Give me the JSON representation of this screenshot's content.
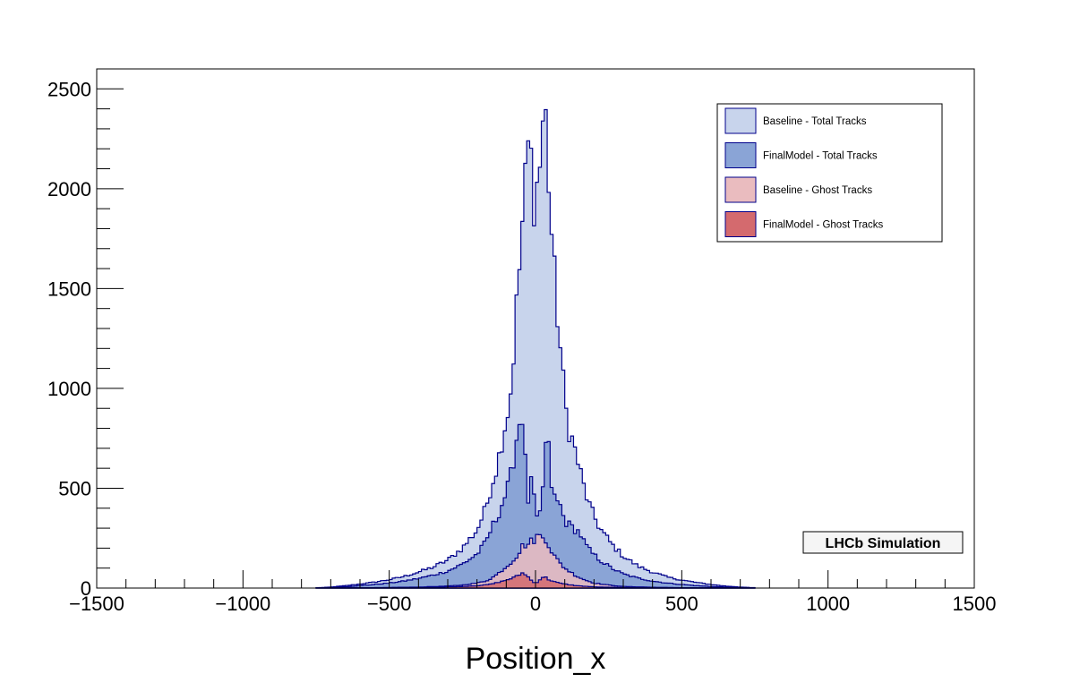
{
  "chart_data": {
    "type": "histogram",
    "xlabel": "Position_x",
    "ylabel": "",
    "xlim": [
      -1500,
      1500
    ],
    "ylim": [
      0,
      2600
    ],
    "x_ticks": [
      -1500,
      -1000,
      -500,
      0,
      500,
      1000,
      1500
    ],
    "x_tick_labels": [
      "−1500",
      "−1000",
      "−500",
      "0",
      "500",
      "1000",
      "1500"
    ],
    "y_ticks": [
      0,
      500,
      1000,
      1500,
      2000,
      2500
    ],
    "y_tick_labels": [
      "0",
      "500",
      "1000",
      "1500",
      "2000",
      "2500"
    ],
    "bin_range": [
      -750,
      750
    ],
    "bin_width": 10,
    "legend_position": "top-right",
    "annotation": "LHCb Simulation",
    "series": [
      {
        "name": "Baseline - Total Tracks",
        "fill": "#c8d4ec",
        "line": "#00008b",
        "points": [
          [
            -740,
            2
          ],
          [
            -700,
            5
          ],
          [
            -650,
            12
          ],
          [
            -600,
            20
          ],
          [
            -550,
            30
          ],
          [
            -500,
            42
          ],
          [
            -450,
            58
          ],
          [
            -400,
            80
          ],
          [
            -350,
            105
          ],
          [
            -300,
            140
          ],
          [
            -250,
            200
          ],
          [
            -200,
            290
          ],
          [
            -170,
            400
          ],
          [
            -150,
            520
          ],
          [
            -130,
            620
          ],
          [
            -110,
            780
          ],
          [
            -90,
            920
          ],
          [
            -80,
            1050
          ],
          [
            -70,
            1300
          ],
          [
            -60,
            1500
          ],
          [
            -50,
            1700
          ],
          [
            -40,
            1950
          ],
          [
            -30,
            2080
          ],
          [
            -20,
            2320
          ],
          [
            -10,
            1950
          ],
          [
            0,
            1980
          ],
          [
            10,
            2050
          ],
          [
            20,
            2200
          ],
          [
            30,
            2470
          ],
          [
            40,
            2200
          ],
          [
            50,
            1900
          ],
          [
            60,
            1650
          ],
          [
            70,
            1450
          ],
          [
            80,
            1300
          ],
          [
            90,
            1100
          ],
          [
            100,
            950
          ],
          [
            110,
            820
          ],
          [
            130,
            720
          ],
          [
            150,
            600
          ],
          [
            170,
            480
          ],
          [
            190,
            390
          ],
          [
            220,
            300
          ],
          [
            260,
            220
          ],
          [
            300,
            160
          ],
          [
            350,
            110
          ],
          [
            400,
            80
          ],
          [
            450,
            55
          ],
          [
            500,
            40
          ],
          [
            550,
            28
          ],
          [
            600,
            18
          ],
          [
            650,
            10
          ],
          [
            700,
            5
          ],
          [
            740,
            2
          ]
        ]
      },
      {
        "name": "FinalModel - Total Tracks",
        "fill": "#8aa4d6",
        "line": "#00008b",
        "points": [
          [
            -740,
            1
          ],
          [
            -700,
            3
          ],
          [
            -650,
            7
          ],
          [
            -600,
            12
          ],
          [
            -550,
            18
          ],
          [
            -500,
            25
          ],
          [
            -450,
            35
          ],
          [
            -400,
            48
          ],
          [
            -350,
            65
          ],
          [
            -300,
            85
          ],
          [
            -250,
            120
          ],
          [
            -200,
            170
          ],
          [
            -170,
            230
          ],
          [
            -150,
            300
          ],
          [
            -130,
            360
          ],
          [
            -110,
            440
          ],
          [
            -90,
            520
          ],
          [
            -80,
            600
          ],
          [
            -70,
            700
          ],
          [
            -60,
            800
          ],
          [
            -50,
            870
          ],
          [
            -40,
            860
          ],
          [
            -30,
            400
          ],
          [
            -20,
            480
          ],
          [
            -10,
            560
          ],
          [
            0,
            350
          ],
          [
            10,
            320
          ],
          [
            20,
            420
          ],
          [
            30,
            600
          ],
          [
            40,
            820
          ],
          [
            50,
            560
          ],
          [
            60,
            480
          ],
          [
            70,
            420
          ],
          [
            80,
            440
          ],
          [
            90,
            380
          ],
          [
            100,
            340
          ],
          [
            110,
            320
          ],
          [
            130,
            300
          ],
          [
            150,
            280
          ],
          [
            170,
            220
          ],
          [
            190,
            180
          ],
          [
            220,
            140
          ],
          [
            260,
            100
          ],
          [
            300,
            70
          ],
          [
            350,
            50
          ],
          [
            400,
            35
          ],
          [
            450,
            25
          ],
          [
            500,
            18
          ],
          [
            550,
            12
          ],
          [
            600,
            8
          ],
          [
            650,
            5
          ],
          [
            700,
            3
          ],
          [
            740,
            1
          ]
        ]
      },
      {
        "name": "Baseline - Ghost Tracks",
        "fill": "#eabcbf",
        "line": "#00008b",
        "points": [
          [
            -600,
            1
          ],
          [
            -500,
            3
          ],
          [
            -400,
            5
          ],
          [
            -300,
            10
          ],
          [
            -250,
            15
          ],
          [
            -200,
            25
          ],
          [
            -170,
            35
          ],
          [
            -150,
            50
          ],
          [
            -130,
            70
          ],
          [
            -110,
            95
          ],
          [
            -90,
            120
          ],
          [
            -70,
            150
          ],
          [
            -50,
            190
          ],
          [
            -40,
            230
          ],
          [
            -30,
            200
          ],
          [
            -20,
            240
          ],
          [
            -10,
            230
          ],
          [
            0,
            250
          ],
          [
            10,
            270
          ],
          [
            20,
            250
          ],
          [
            30,
            260
          ],
          [
            40,
            230
          ],
          [
            50,
            200
          ],
          [
            60,
            170
          ],
          [
            70,
            150
          ],
          [
            80,
            130
          ],
          [
            100,
            100
          ],
          [
            120,
            80
          ],
          [
            140,
            60
          ],
          [
            170,
            40
          ],
          [
            200,
            25
          ],
          [
            250,
            15
          ],
          [
            300,
            8
          ],
          [
            400,
            4
          ],
          [
            500,
            2
          ],
          [
            600,
            1
          ]
        ]
      },
      {
        "name": "FinalModel - Ghost Tracks",
        "fill": "#d46a6e",
        "line": "#00008b",
        "points": [
          [
            -600,
            1
          ],
          [
            -500,
            2
          ],
          [
            -400,
            3
          ],
          [
            -300,
            6
          ],
          [
            -250,
            8
          ],
          [
            -200,
            12
          ],
          [
            -170,
            16
          ],
          [
            -150,
            20
          ],
          [
            -130,
            28
          ],
          [
            -110,
            35
          ],
          [
            -90,
            45
          ],
          [
            -70,
            55
          ],
          [
            -50,
            70
          ],
          [
            -40,
            80
          ],
          [
            -30,
            60
          ],
          [
            -20,
            50
          ],
          [
            -10,
            30
          ],
          [
            0,
            25
          ],
          [
            10,
            35
          ],
          [
            20,
            50
          ],
          [
            30,
            60
          ],
          [
            40,
            45
          ],
          [
            50,
            40
          ],
          [
            60,
            35
          ],
          [
            70,
            30
          ],
          [
            80,
            25
          ],
          [
            100,
            20
          ],
          [
            120,
            16
          ],
          [
            140,
            12
          ],
          [
            170,
            9
          ],
          [
            200,
            6
          ],
          [
            250,
            4
          ],
          [
            300,
            3
          ],
          [
            400,
            2
          ],
          [
            500,
            1
          ],
          [
            600,
            1
          ]
        ]
      }
    ]
  }
}
